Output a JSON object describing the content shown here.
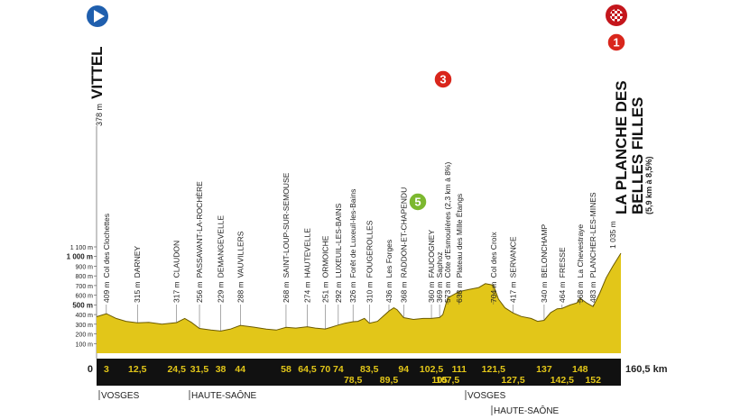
{
  "chart_data": {
    "type": "area",
    "start": {
      "altitude": {
        "value": 378,
        "label": "378 m"
      },
      "name": "VITTEL"
    },
    "finish": {
      "altitude": {
        "value": 1035,
        "label": "1 035 m"
      },
      "name_lines": [
        "LA PLANCHE DES",
        "BELLES FILLES"
      ],
      "detail": "(5,9 km à 8,5%)"
    },
    "x": [
      0,
      3,
      6,
      9,
      12.5,
      16,
      20,
      24.5,
      27,
      29,
      31.5,
      35,
      38,
      41,
      44,
      48,
      52,
      55,
      58,
      61,
      64.5,
      67,
      70,
      72,
      74,
      76,
      78.5,
      80,
      82,
      83.5,
      86,
      89.5,
      91,
      92,
      94,
      97,
      100,
      102.5,
      105,
      106,
      107.5,
      109,
      111,
      114,
      117,
      119,
      121.5,
      123,
      125,
      127.5,
      130,
      133,
      135,
      137,
      139,
      141,
      142.5,
      145,
      147,
      148,
      150,
      152,
      154,
      156,
      158,
      160.5
    ],
    "values": [
      378,
      409,
      360,
      330,
      315,
      320,
      300,
      317,
      360,
      320,
      256,
      240,
      229,
      250,
      288,
      270,
      250,
      240,
      268,
      260,
      274,
      260,
      251,
      270,
      292,
      310,
      326,
      330,
      360,
      310,
      330,
      436,
      470,
      450,
      368,
      350,
      360,
      360,
      369,
      400,
      573,
      600,
      638,
      660,
      680,
      720,
      704,
      560,
      470,
      417,
      380,
      360,
      330,
      340,
      420,
      460,
      464,
      500,
      520,
      568,
      520,
      483,
      620,
      780,
      900,
      1035
    ],
    "color": "#e2c619",
    "xlim": [
      0,
      160.5
    ],
    "xticks": [
      {
        "value": 0,
        "label": "0"
      },
      {
        "value": 160.5,
        "label": "160,5 km"
      }
    ],
    "ylim": [
      0,
      1100
    ],
    "yticks": [
      {
        "value": 100,
        "label": "100 m"
      },
      {
        "value": 200,
        "label": "200 m"
      },
      {
        "value": 300,
        "label": "300 m"
      },
      {
        "value": 400,
        "label": "400 m"
      },
      {
        "value": 500,
        "label": "500 m",
        "bold": true
      },
      {
        "value": 600,
        "label": "600 m"
      },
      {
        "value": 700,
        "label": "700 m"
      },
      {
        "value": 800,
        "label": "800 m"
      },
      {
        "value": 900,
        "label": "900 m"
      },
      {
        "value": 1000,
        "label": "1 000 m",
        "bold": true
      },
      {
        "value": 1100,
        "label": "1 100 m"
      }
    ],
    "waypoints": [
      {
        "km": {
          "value": 3,
          "label": "3"
        },
        "altitude": {
          "value": 409,
          "label": "409 m"
        },
        "name": "Col des Clochettes"
      },
      {
        "km": {
          "value": 12.5,
          "label": "12,5"
        },
        "altitude": {
          "value": 315,
          "label": "315 m"
        },
        "name": "DARNEY"
      },
      {
        "km": {
          "value": 24.5,
          "label": "24,5"
        },
        "altitude": {
          "value": 317,
          "label": "317 m"
        },
        "name": "CLAUDON"
      },
      {
        "km": {
          "value": 31.5,
          "label": "31,5"
        },
        "altitude": {
          "value": 256,
          "label": "256 m"
        },
        "name": "PASSAVANT-LA-ROCHÈRE"
      },
      {
        "km": {
          "value": 38,
          "label": "38"
        },
        "altitude": {
          "value": 229,
          "label": "229 m"
        },
        "name": "DEMANGEVELLE"
      },
      {
        "km": {
          "value": 44,
          "label": "44"
        },
        "altitude": {
          "value": 288,
          "label": "288 m"
        },
        "name": "VAUVILLERS"
      },
      {
        "km": {
          "value": 58,
          "label": "58"
        },
        "altitude": {
          "value": 268,
          "label": "268 m"
        },
        "name": "SAINT-LOUP-SUR-SEMOUSE"
      },
      {
        "km": {
          "value": 64.5,
          "label": "64,5"
        },
        "altitude": {
          "value": 274,
          "label": "274 m"
        },
        "name": "HAUTEVELLE"
      },
      {
        "km": {
          "value": 70,
          "label": "70"
        },
        "altitude": {
          "value": 251,
          "label": "251 m"
        },
        "name": "ORMOICHE"
      },
      {
        "km": {
          "value": 74,
          "label": "74"
        },
        "altitude": {
          "value": 292,
          "label": "292 m"
        },
        "name": "LUXEUIL-LES-BAINS"
      },
      {
        "km": {
          "value": 78.5,
          "label": "78,5"
        },
        "altitude": {
          "value": 326,
          "label": "326 m"
        },
        "name": "Forêt de Luxeuil-les-Bains"
      },
      {
        "km": {
          "value": 83.5,
          "label": "83,5"
        },
        "altitude": {
          "value": 310,
          "label": "310 m"
        },
        "name": "FOUGEROLLES"
      },
      {
        "km": {
          "value": 89.5,
          "label": "89,5"
        },
        "altitude": {
          "value": 436,
          "label": "436 m"
        },
        "name": "Les Forges"
      },
      {
        "km": {
          "value": 94,
          "label": "94"
        },
        "altitude": {
          "value": 368,
          "label": "368 m"
        },
        "name": "RADDON-ET-CHAPENDU"
      },
      {
        "km": {
          "value": 102.5,
          "label": "102,5"
        },
        "altitude": {
          "value": 360,
          "label": "360 m"
        },
        "name": "FAUCOGNEY"
      },
      {
        "km": {
          "value": 105,
          "label": "105"
        },
        "altitude": {
          "value": 369,
          "label": "369 m"
        },
        "name": "Saphoz"
      },
      {
        "km": {
          "value": 107.5,
          "label": "107,5"
        },
        "altitude": {
          "value": 573,
          "label": "573 m"
        },
        "name": "Côte d'Esmoulières (2,3 km à 8%)"
      },
      {
        "km": {
          "value": 111,
          "label": "111"
        },
        "altitude": {
          "value": 638,
          "label": "638 m"
        },
        "name": "Plateau des Mille Étangs"
      },
      {
        "km": {
          "value": 121.5,
          "label": "121,5"
        },
        "altitude": {
          "value": 704,
          "label": "704 m"
        },
        "name": "Col des Croix"
      },
      {
        "km": {
          "value": 127.5,
          "label": "127,5"
        },
        "altitude": {
          "value": 417,
          "label": "417 m"
        },
        "name": "SERVANCE"
      },
      {
        "km": {
          "value": 137,
          "label": "137"
        },
        "altitude": {
          "value": 340,
          "label": "340 m"
        },
        "name": "BELONCHAMP"
      },
      {
        "km": {
          "value": 142.5,
          "label": "142,5"
        },
        "altitude": {
          "value": 464,
          "label": "464 m"
        },
        "name": "FRESSE"
      },
      {
        "km": {
          "value": 148,
          "label": "148"
        },
        "altitude": {
          "value": 568,
          "label": "568 m"
        },
        "name": "La Chevestraye"
      },
      {
        "km": {
          "value": 152,
          "label": "152"
        },
        "altitude": {
          "value": 483,
          "label": "483 m"
        },
        "name": "PLANCHER-LES-MINES"
      }
    ],
    "badges": [
      {
        "label": "3",
        "color": "#d9261c"
      },
      {
        "label": "5",
        "color": "#7cb82f"
      },
      {
        "label": "1",
        "color": "#d9261c"
      }
    ],
    "regions": [
      "VOSGES",
      "HAUTE-SAÔNE",
      "VOSGES",
      "HAUTE-SAÔNE"
    ]
  }
}
